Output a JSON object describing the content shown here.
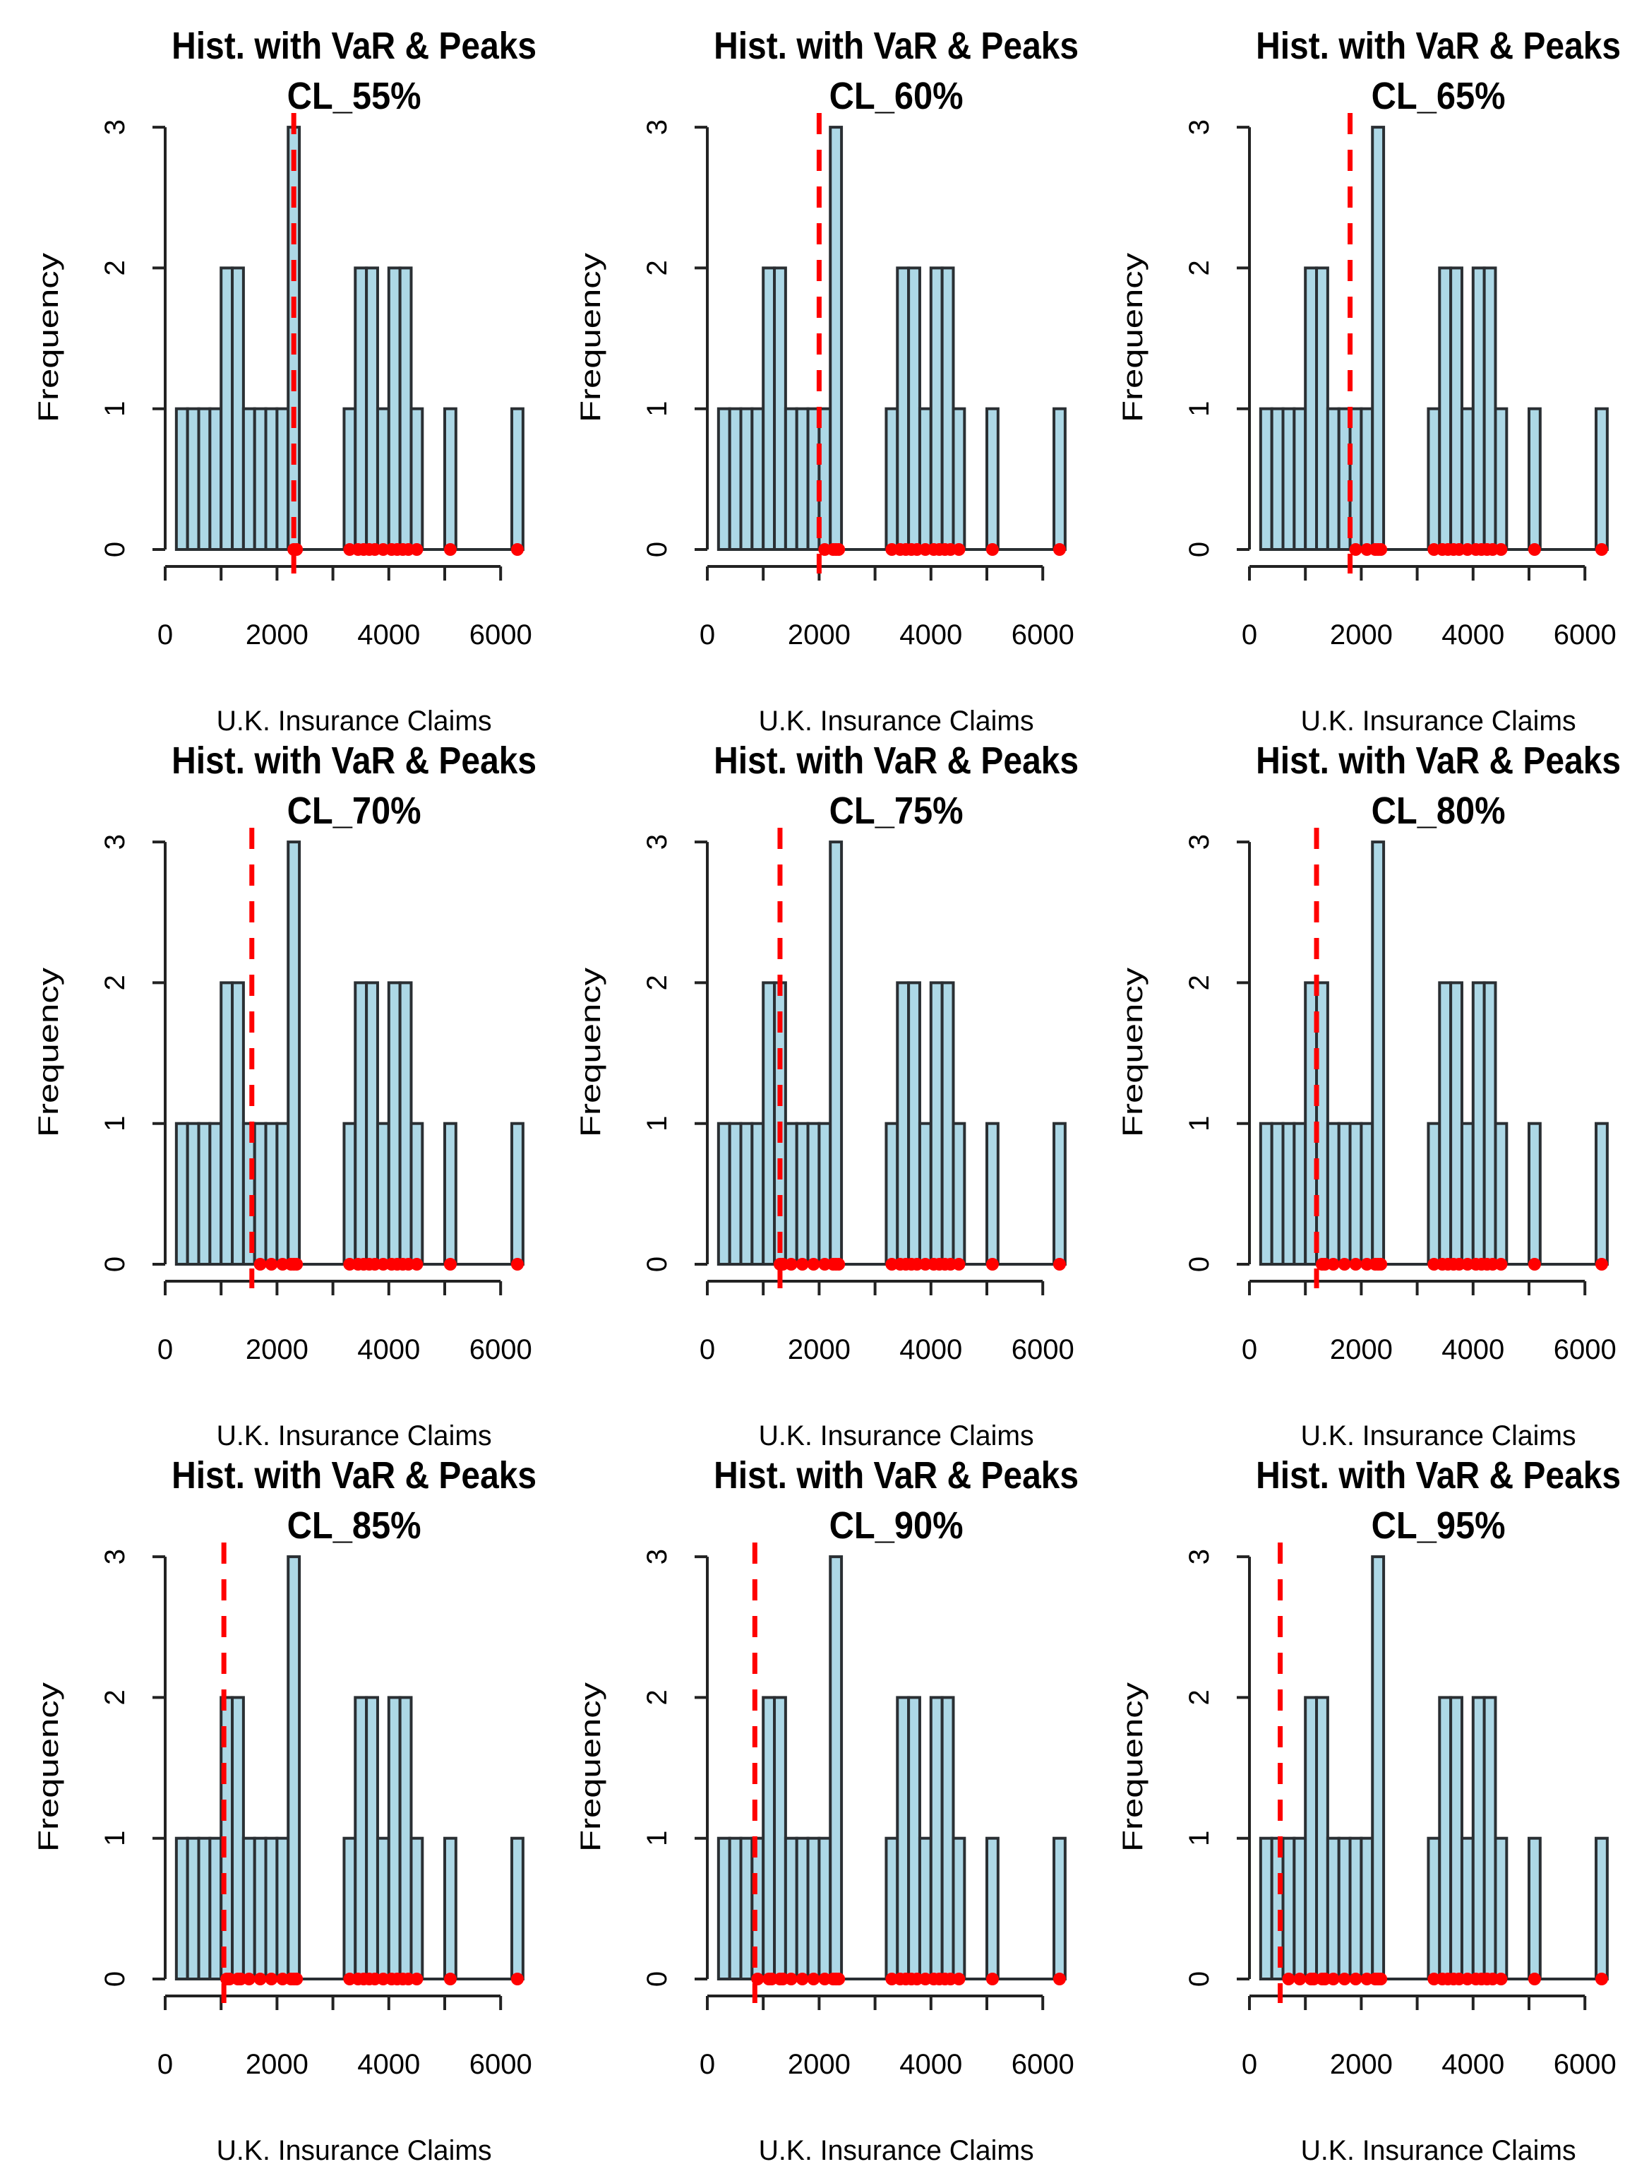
{
  "chart_data": {
    "type": "bar",
    "layout": "3x3 grid of histograms",
    "title": "Hist. with VaR & Peaks",
    "xlabel": "U.K. Insurance Claims",
    "ylabel": "Frequency",
    "xlim": [
      0,
      6000
    ],
    "ylim": [
      0,
      3
    ],
    "xticks": [
      "0",
      "2000",
      "4000",
      "6000"
    ],
    "yticks": [
      "0",
      "1",
      "2",
      "3"
    ],
    "bin_width": 200,
    "bins": [
      {
        "start": 200,
        "count": 1
      },
      {
        "start": 400,
        "count": 1
      },
      {
        "start": 600,
        "count": 1
      },
      {
        "start": 800,
        "count": 1
      },
      {
        "start": 1000,
        "count": 2
      },
      {
        "start": 1200,
        "count": 2
      },
      {
        "start": 1400,
        "count": 1
      },
      {
        "start": 1600,
        "count": 1
      },
      {
        "start": 1800,
        "count": 1
      },
      {
        "start": 2000,
        "count": 1
      },
      {
        "start": 2200,
        "count": 3
      },
      {
        "start": 2400,
        "count": 0
      },
      {
        "start": 2600,
        "count": 0
      },
      {
        "start": 2800,
        "count": 0
      },
      {
        "start": 3000,
        "count": 0
      },
      {
        "start": 3200,
        "count": 1
      },
      {
        "start": 3400,
        "count": 2
      },
      {
        "start": 3600,
        "count": 2
      },
      {
        "start": 3800,
        "count": 1
      },
      {
        "start": 4000,
        "count": 2
      },
      {
        "start": 4200,
        "count": 2
      },
      {
        "start": 4400,
        "count": 1
      },
      {
        "start": 4600,
        "count": 0
      },
      {
        "start": 4800,
        "count": 0
      },
      {
        "start": 5000,
        "count": 1
      },
      {
        "start": 5200,
        "count": 0
      },
      {
        "start": 5400,
        "count": 0
      },
      {
        "start": 5600,
        "count": 0
      },
      {
        "start": 5800,
        "count": 0
      },
      {
        "start": 6000,
        "count": 0
      },
      {
        "start": 6200,
        "count": 1
      }
    ],
    "claims": [
      300,
      500,
      700,
      900,
      1100,
      1150,
      1300,
      1350,
      1500,
      1700,
      1900,
      2100,
      2250,
      2300,
      2350,
      3300,
      3450,
      3550,
      3650,
      3750,
      3900,
      4050,
      4150,
      4250,
      4350,
      4500,
      5100,
      6300
    ],
    "panels": [
      {
        "subtitle": "CL_55%",
        "var": 2300
      },
      {
        "subtitle": "CL_60%",
        "var": 2000
      },
      {
        "subtitle": "CL_65%",
        "var": 1800
      },
      {
        "subtitle": "CL_70%",
        "var": 1550
      },
      {
        "subtitle": "CL_75%",
        "var": 1300
      },
      {
        "subtitle": "CL_80%",
        "var": 1200
      },
      {
        "subtitle": "CL_85%",
        "var": 1050
      },
      {
        "subtitle": "CL_90%",
        "var": 850
      },
      {
        "subtitle": "CL_95%",
        "var": 550
      }
    ],
    "colors": {
      "bar": "#add8e6",
      "var_line": "#ff0000",
      "peaks": "#ff0000"
    }
  }
}
